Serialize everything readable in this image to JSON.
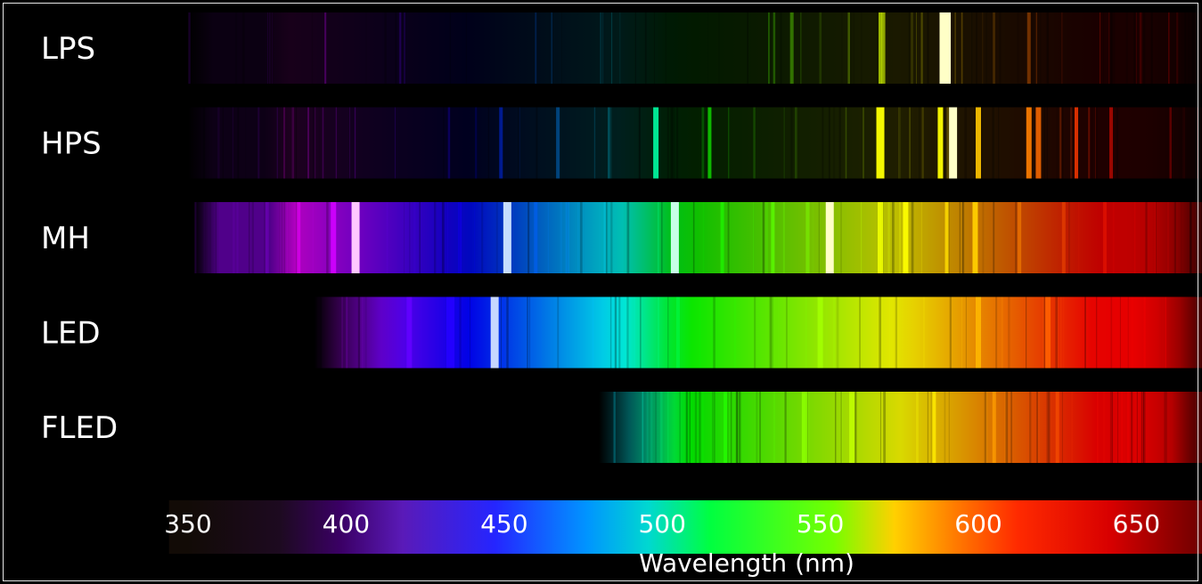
{
  "chart_data": {
    "type": "other",
    "xlabel": "Wavelength (nm)",
    "xlim": [
      350,
      680
    ],
    "x_ticks": [
      350,
      400,
      450,
      500,
      550,
      600,
      650
    ],
    "rows": [
      {
        "name": "LPS",
        "range": [
          350,
          680
        ],
        "base_intensity": 0.1,
        "lines": [
          {
            "wl": 541,
            "intensity": 0.2
          },
          {
            "wl": 569,
            "intensity": 0.55
          },
          {
            "wl": 570,
            "intensity": 0.45
          },
          {
            "wl": 589,
            "intensity": 1.0
          },
          {
            "wl": 590,
            "intensity": 1.0
          },
          {
            "wl": 616,
            "intensity": 0.2
          }
        ]
      },
      {
        "name": "HPS",
        "range": [
          350,
          680
        ],
        "base_intensity": 0.12,
        "lines": [
          {
            "wl": 449,
            "intensity": 0.35
          },
          {
            "wl": 467,
            "intensity": 0.25
          },
          {
            "wl": 498,
            "intensity": 0.8
          },
          {
            "wl": 515,
            "intensity": 0.55
          },
          {
            "wl": 569,
            "intensity": 0.95
          },
          {
            "wl": 588,
            "intensity": 0.9
          },
          {
            "wl": 592,
            "intensity": 1.0
          },
          {
            "wl": 600,
            "intensity": 0.85
          },
          {
            "wl": 616,
            "intensity": 0.85
          },
          {
            "wl": 619,
            "intensity": 0.75
          },
          {
            "wl": 631,
            "intensity": 0.7
          },
          {
            "wl": 642,
            "intensity": 0.4
          }
        ]
      },
      {
        "name": "MH",
        "range": [
          352,
          680
        ],
        "base_intensity": 0.75,
        "lines": [
          {
            "wl": 375,
            "intensity": 0.6
          },
          {
            "wl": 385,
            "intensity": 0.55
          },
          {
            "wl": 396,
            "intensity": 0.85
          },
          {
            "wl": 403,
            "intensity": 1.0
          },
          {
            "wl": 436,
            "intensity": 0.5
          },
          {
            "wl": 451,
            "intensity": 1.0
          },
          {
            "wl": 460,
            "intensity": 0.55
          },
          {
            "wl": 470,
            "intensity": 0.5
          },
          {
            "wl": 504,
            "intensity": 1.0
          },
          {
            "wl": 519,
            "intensity": 0.6
          },
          {
            "wl": 535,
            "intensity": 0.65
          },
          {
            "wl": 546,
            "intensity": 0.6
          },
          {
            "wl": 553,
            "intensity": 1.0
          },
          {
            "wl": 569,
            "intensity": 0.85
          },
          {
            "wl": 577,
            "intensity": 0.85
          },
          {
            "wl": 590,
            "intensity": 0.7
          },
          {
            "wl": 599,
            "intensity": 0.9
          },
          {
            "wl": 613,
            "intensity": 0.55
          },
          {
            "wl": 627,
            "intensity": 0.5
          },
          {
            "wl": 640,
            "intensity": 0.5
          }
        ]
      },
      {
        "name": "LED",
        "range": [
          390,
          680
        ],
        "base_intensity": 0.9,
        "lines": [
          {
            "wl": 420,
            "intensity": 0.9
          },
          {
            "wl": 433,
            "intensity": 0.95
          },
          {
            "wl": 447,
            "intensity": 1.0
          },
          {
            "wl": 505,
            "intensity": 0.6
          },
          {
            "wl": 550,
            "intensity": 0.85
          },
          {
            "wl": 600,
            "intensity": 0.75
          },
          {
            "wl": 622,
            "intensity": 0.8
          }
        ]
      },
      {
        "name": "FLED",
        "range": [
          480,
          680
        ],
        "base_intensity": 0.85,
        "lines": [
          {
            "wl": 520,
            "intensity": 0.65
          },
          {
            "wl": 545,
            "intensity": 0.8
          },
          {
            "wl": 560,
            "intensity": 0.75
          },
          {
            "wl": 586,
            "intensity": 0.7
          },
          {
            "wl": 605,
            "intensity": 0.65
          },
          {
            "wl": 625,
            "intensity": 0.6
          }
        ]
      }
    ],
    "colorbar": {
      "stops": [
        {
          "wl": 350,
          "color": "#120b06"
        },
        {
          "wl": 380,
          "color": "#1d0a20"
        },
        {
          "wl": 400,
          "color": "#3b0066"
        },
        {
          "wl": 420,
          "color": "#5a1ab8"
        },
        {
          "wl": 450,
          "color": "#2525ff"
        },
        {
          "wl": 480,
          "color": "#0095ff"
        },
        {
          "wl": 500,
          "color": "#00d8d0"
        },
        {
          "wl": 520,
          "color": "#00ff40"
        },
        {
          "wl": 560,
          "color": "#74ff00"
        },
        {
          "wl": 580,
          "color": "#ffd000"
        },
        {
          "wl": 600,
          "color": "#ff7a00"
        },
        {
          "wl": 620,
          "color": "#ff2a00"
        },
        {
          "wl": 650,
          "color": "#d80000"
        },
        {
          "wl": 680,
          "color": "#6e0000"
        }
      ]
    }
  },
  "colors": {
    "background": "#000000",
    "frame": "#e8e8e8",
    "text": "#ffffff"
  }
}
